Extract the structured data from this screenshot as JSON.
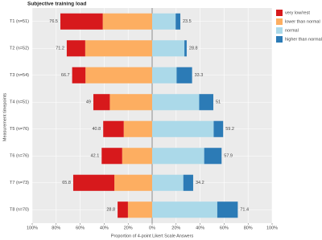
{
  "chart_data": {
    "type": "diverging-bar",
    "title": "Subjective training load",
    "x_label": "Proportion of 4-point Likert Scale Answers",
    "y_label": "Measurement timepoints",
    "categories": [
      "T1 (n=51)",
      "T2 (n=52)",
      "T3 (n=54)",
      "T4 (n=51)",
      "T5 (n=76)",
      "T6 (n=76)",
      "T7 (n=73)",
      "T8 (n=70)"
    ],
    "diverging_split": 2,
    "series": [
      {
        "name": "very low/rest",
        "color": "#d7191c",
        "values": [
          35.3,
          15.4,
          11.1,
          13.7,
          17.1,
          17.1,
          34.3,
          8.6
        ]
      },
      {
        "name": "lower than normal",
        "color": "#fdae61",
        "values": [
          41.2,
          55.8,
          55.6,
          35.3,
          23.7,
          25.0,
          31.5,
          20.2
        ]
      },
      {
        "name": "normal",
        "color": "#abd9e9",
        "values": [
          19.6,
          26.9,
          20.4,
          39.2,
          51.3,
          43.4,
          26.0,
          54.3
        ]
      },
      {
        "name": "higher than normal",
        "color": "#2c7bb6",
        "values": [
          3.9,
          1.9,
          12.9,
          11.8,
          7.9,
          14.5,
          8.2,
          17.1
        ]
      }
    ],
    "left_totals": [
      76.5,
      71.2,
      66.7,
      49.0,
      40.8,
      42.1,
      65.8,
      28.8
    ],
    "right_totals": [
      23.5,
      28.8,
      33.3,
      51.0,
      59.2,
      57.9,
      34.2,
      71.4
    ],
    "xlim": [
      -100,
      100
    ],
    "xticks": [
      {
        "value": -100,
        "label": "100%"
      },
      {
        "value": -80,
        "label": "80%"
      },
      {
        "value": -60,
        "label": "60%"
      },
      {
        "value": -40,
        "label": "40%"
      },
      {
        "value": -20,
        "label": "20%"
      },
      {
        "value": 0,
        "label": "0%"
      },
      {
        "value": 20,
        "label": "20%"
      },
      {
        "value": 40,
        "label": "40%"
      },
      {
        "value": 60,
        "label": "60%"
      },
      {
        "value": 80,
        "label": "80%"
      },
      {
        "value": 100,
        "label": "100%"
      }
    ],
    "grid": true,
    "legend": "top-right"
  }
}
